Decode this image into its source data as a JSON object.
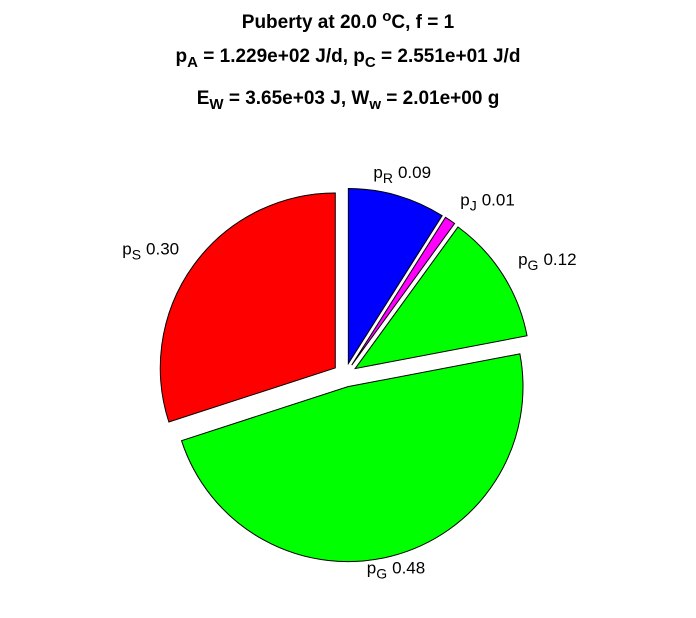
{
  "chart_data": {
    "type": "pie",
    "title": [
      [
        {
          "text": "Puberty at 20.0 "
        },
        {
          "text": "o",
          "shift": "super"
        },
        {
          "text": "C, f = 1"
        }
      ],
      [
        {
          "text": "p"
        },
        {
          "text": "A",
          "shift": "sub"
        },
        {
          "text": " = 1.229e+02 J/d,  p"
        },
        {
          "text": "C",
          "shift": "sub"
        },
        {
          "text": " = 2.551e+01 J/d"
        }
      ],
      [
        {
          "text": "E"
        },
        {
          "text": "W",
          "shift": "sub"
        },
        {
          "text": " = 3.65e+03 J, W"
        },
        {
          "text": "w",
          "shift": "sub"
        },
        {
          "text": " = 2.01e+00 g"
        }
      ]
    ],
    "categories": [
      {
        "text": "p",
        "sub": "R"
      },
      {
        "text": "p",
        "sub": "J"
      },
      {
        "text": "p",
        "sub": "G"
      },
      {
        "text": "p",
        "sub": "G"
      },
      {
        "text": "p",
        "sub": "S"
      }
    ],
    "values": [
      0.09,
      0.01,
      0.12,
      0.48,
      0.3
    ],
    "value_labels": [
      "0.09",
      "0.01",
      "0.12",
      "0.48",
      "0.30"
    ],
    "colors": [
      "#0000ff",
      "#ff00ff",
      "#00ff00",
      "#00ff00",
      "#ff0000"
    ],
    "explode": true
  }
}
